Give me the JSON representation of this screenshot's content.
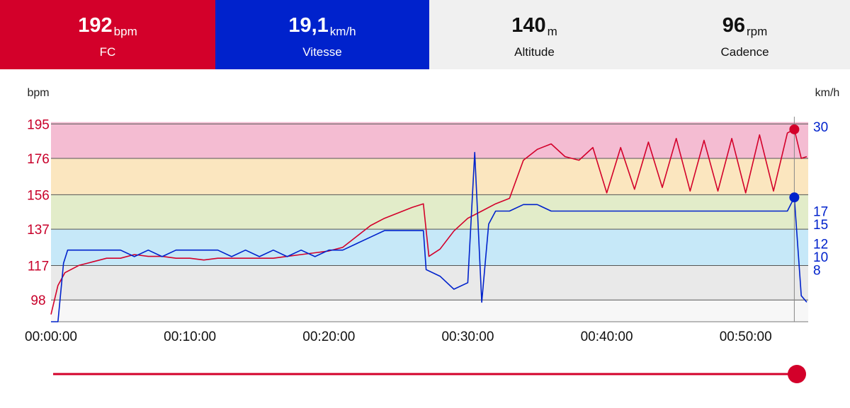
{
  "stats": {
    "hr": {
      "value": "192",
      "unit": "bpm",
      "label": "FC",
      "color": "#d3002a"
    },
    "speed": {
      "value": "19,1",
      "unit": "km/h",
      "label": "Vitesse",
      "color": "#0022cc"
    },
    "altitude": {
      "value": "140",
      "unit": "m",
      "label": "Altitude"
    },
    "cadence": {
      "value": "96",
      "unit": "rpm",
      "label": "Cadence"
    }
  },
  "chart_data": {
    "type": "line",
    "left_axis_label": "bpm",
    "right_axis_label": "km/h",
    "hr_ticks": [
      "195",
      "176",
      "156",
      "137",
      "117",
      "98"
    ],
    "speed_ticks": [
      "30",
      "17",
      "15",
      "12",
      "10",
      "8"
    ],
    "x_ticks": [
      "00:00:00",
      "00:10:00",
      "00:20:00",
      "00:30:00",
      "00:40:00",
      "00:50:00"
    ],
    "xlim_minutes": [
      0,
      54.5
    ],
    "hr_ylim": [
      86,
      199
    ],
    "speed_ylim": [
      0,
      31.5
    ],
    "hr_zones": [
      {
        "from": 86,
        "to": 98,
        "color": "#f7f7f7"
      },
      {
        "from": 98,
        "to": 117,
        "color": "#e9e9e9"
      },
      {
        "from": 117,
        "to": 137,
        "color": "#c6e8f8"
      },
      {
        "from": 137,
        "to": 156,
        "color": "#e2ecc9"
      },
      {
        "from": 156,
        "to": 176,
        "color": "#fbe6bf"
      },
      {
        "from": 176,
        "to": 196,
        "color": "#f4bcd2"
      }
    ],
    "series": [
      {
        "name": "FC",
        "unit": "bpm",
        "color": "#d3002a",
        "x": [
          0,
          0.5,
          1,
          2,
          3,
          4,
          5,
          6,
          7,
          8,
          9,
          10,
          11,
          12,
          13,
          14,
          15,
          16,
          17,
          18,
          19,
          20,
          21,
          22,
          23,
          24,
          25,
          26,
          26.8,
          27.2,
          28,
          29,
          30,
          31,
          32,
          33,
          34,
          35,
          36,
          37,
          38,
          39,
          40,
          41,
          42,
          43,
          44,
          45,
          46,
          47,
          48,
          49,
          50,
          51,
          52,
          53,
          53.5,
          54,
          54.4
        ],
        "values": [
          90,
          106,
          113,
          117,
          119,
          121,
          121,
          123,
          122,
          122,
          121,
          121,
          120,
          121,
          121,
          121,
          121,
          121,
          122,
          123,
          124,
          125,
          127,
          133,
          139,
          143,
          146,
          149,
          151,
          122,
          126,
          136,
          143,
          147,
          151,
          154,
          175,
          181,
          184,
          177,
          175,
          182,
          157,
          182,
          159,
          185,
          160,
          187,
          158,
          186,
          158,
          187,
          157,
          189,
          158,
          190,
          192,
          176,
          177
        ]
      },
      {
        "name": "Vitesse",
        "unit": "km/h",
        "color": "#0022cc",
        "x": [
          0,
          0.5,
          0.9,
          1.2,
          2,
          3,
          4,
          5,
          6,
          7,
          8,
          9,
          10,
          11,
          12,
          13,
          14,
          15,
          16,
          17,
          18,
          19,
          20,
          21,
          22,
          23,
          24,
          25,
          26,
          26.8,
          27,
          28,
          29,
          30,
          30.5,
          31,
          31.5,
          32,
          33,
          34,
          35,
          36,
          37,
          38,
          39,
          40,
          41,
          42,
          43,
          44,
          45,
          46,
          47,
          48,
          49,
          50,
          51,
          52,
          53,
          53.5,
          54,
          54.4
        ],
        "values": [
          0,
          0,
          9,
          11,
          11,
          11,
          11,
          11,
          10,
          11,
          10,
          11,
          11,
          11,
          11,
          10,
          11,
          10,
          11,
          10,
          11,
          10,
          11,
          11,
          12,
          13,
          14,
          14,
          14,
          14,
          8,
          7,
          5,
          6,
          26,
          3,
          15,
          17,
          17,
          18,
          18,
          17,
          17,
          17,
          17,
          17,
          17,
          17,
          17,
          17,
          17,
          17,
          17,
          17,
          17,
          17,
          17,
          17,
          17,
          19.1,
          4,
          3
        ]
      }
    ],
    "cursor_minutes": 53.5,
    "slider_fraction": 1
  }
}
